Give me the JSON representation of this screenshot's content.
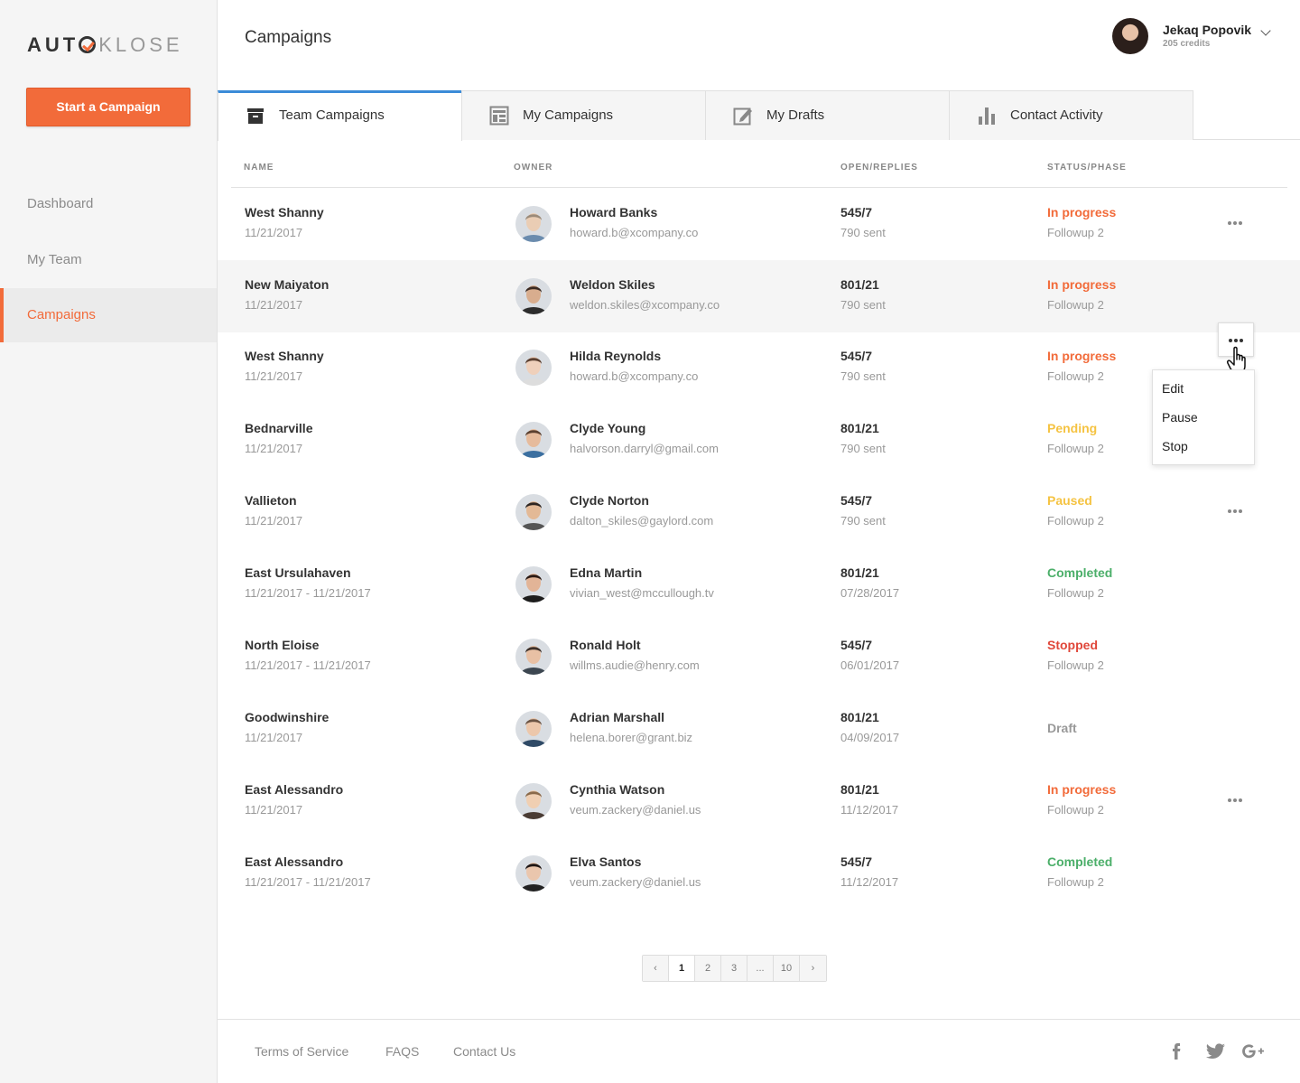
{
  "app": {
    "logo_dark": "AUT",
    "logo_light": "KLOSE",
    "start_button": "Start a Campaign"
  },
  "sidebar": {
    "items": [
      {
        "label": "Dashboard"
      },
      {
        "label": "My Team"
      },
      {
        "label": "Campaigns"
      }
    ]
  },
  "header": {
    "title": "Campaigns",
    "user_name": "Jekaq Popovik",
    "user_credits": "205 credits"
  },
  "tabs": [
    {
      "label": "Team Campaigns",
      "icon": "archive-icon"
    },
    {
      "label": "My Campaigns",
      "icon": "layout-icon"
    },
    {
      "label": "My Drafts",
      "icon": "edit-icon"
    },
    {
      "label": "Contact Activity",
      "icon": "bar-chart-icon"
    }
  ],
  "table": {
    "headers": {
      "name": "NAME",
      "owner": "OWNER",
      "open": "OPEN/REPLIES",
      "status": "STATUS/PHASE"
    },
    "rows": [
      {
        "name": "West Shanny",
        "date": "11/21/2017",
        "owner": "Howard Banks",
        "email": "howard.b@xcompany.co",
        "open": "545/7",
        "sub": "790 sent",
        "status": "In progress",
        "phase": "Followup 2"
      },
      {
        "name": "New Maiyaton",
        "date": "11/21/2017",
        "owner": "Weldon Skiles",
        "email": "weldon.skiles@xcompany.co",
        "open": "801/21",
        "sub": "790 sent",
        "status": "In progress",
        "phase": "Followup 2"
      },
      {
        "name": "West Shanny",
        "date": "11/21/2017",
        "owner": "Hilda Reynolds",
        "email": "howard.b@xcompany.co",
        "open": "545/7",
        "sub": "790 sent",
        "status": "In progress",
        "phase": "Followup 2"
      },
      {
        "name": "Bednarville",
        "date": "11/21/2017",
        "owner": "Clyde Young",
        "email": "halvorson.darryl@gmail.com",
        "open": "801/21",
        "sub": "790 sent",
        "status": "Pending",
        "phase": "Followup 2"
      },
      {
        "name": "Vallieton",
        "date": "11/21/2017",
        "owner": "Clyde Norton",
        "email": "dalton_skiles@gaylord.com",
        "open": "545/7",
        "sub": "790 sent",
        "status": "Paused",
        "phase": "Followup 2"
      },
      {
        "name": "East Ursulahaven",
        "date": "11/21/2017 - 11/21/2017",
        "owner": "Edna Martin",
        "email": "vivian_west@mccullough.tv",
        "open": "801/21",
        "sub": "07/28/2017",
        "status": "Completed",
        "phase": "Followup 2"
      },
      {
        "name": "North Eloise",
        "date": "11/21/2017 - 11/21/2017",
        "owner": "Ronald Holt",
        "email": "willms.audie@henry.com",
        "open": "545/7",
        "sub": "06/01/2017",
        "status": "Stopped",
        "phase": "Followup 2"
      },
      {
        "name": "Goodwinshire",
        "date": "11/21/2017",
        "owner": "Adrian Marshall",
        "email": "helena.borer@grant.biz",
        "open": "801/21",
        "sub": "04/09/2017",
        "status": "Draft",
        "phase": ""
      },
      {
        "name": "East Alessandro",
        "date": "11/21/2017",
        "owner": "Cynthia Watson",
        "email": "veum.zackery@daniel.us",
        "open": "801/21",
        "sub": "11/12/2017",
        "status": "In progress",
        "phase": "Followup 2"
      },
      {
        "name": "East Alessandro",
        "date": "11/21/2017 - 11/21/2017",
        "owner": "Elva Santos",
        "email": "veum.zackery@daniel.us",
        "open": "545/7",
        "sub": "11/12/2017",
        "status": "Completed",
        "phase": "Followup 2"
      }
    ]
  },
  "status_colors": {
    "In progress": "#f26b3a",
    "Pending": "#f5c342",
    "Paused": "#f5c342",
    "Completed": "#4caf6a",
    "Stopped": "#e0473a",
    "Draft": "#999999"
  },
  "row_menu": {
    "items": [
      "Edit",
      "Pause",
      "Stop"
    ]
  },
  "pagination": {
    "pages": [
      "1",
      "2",
      "3",
      "...",
      "10"
    ],
    "current": "1"
  },
  "footer": {
    "links": [
      "Terms of Service",
      "FAQS",
      "Contact Us"
    ],
    "social": [
      "facebook-icon",
      "twitter-icon",
      "google-plus-icon"
    ]
  }
}
